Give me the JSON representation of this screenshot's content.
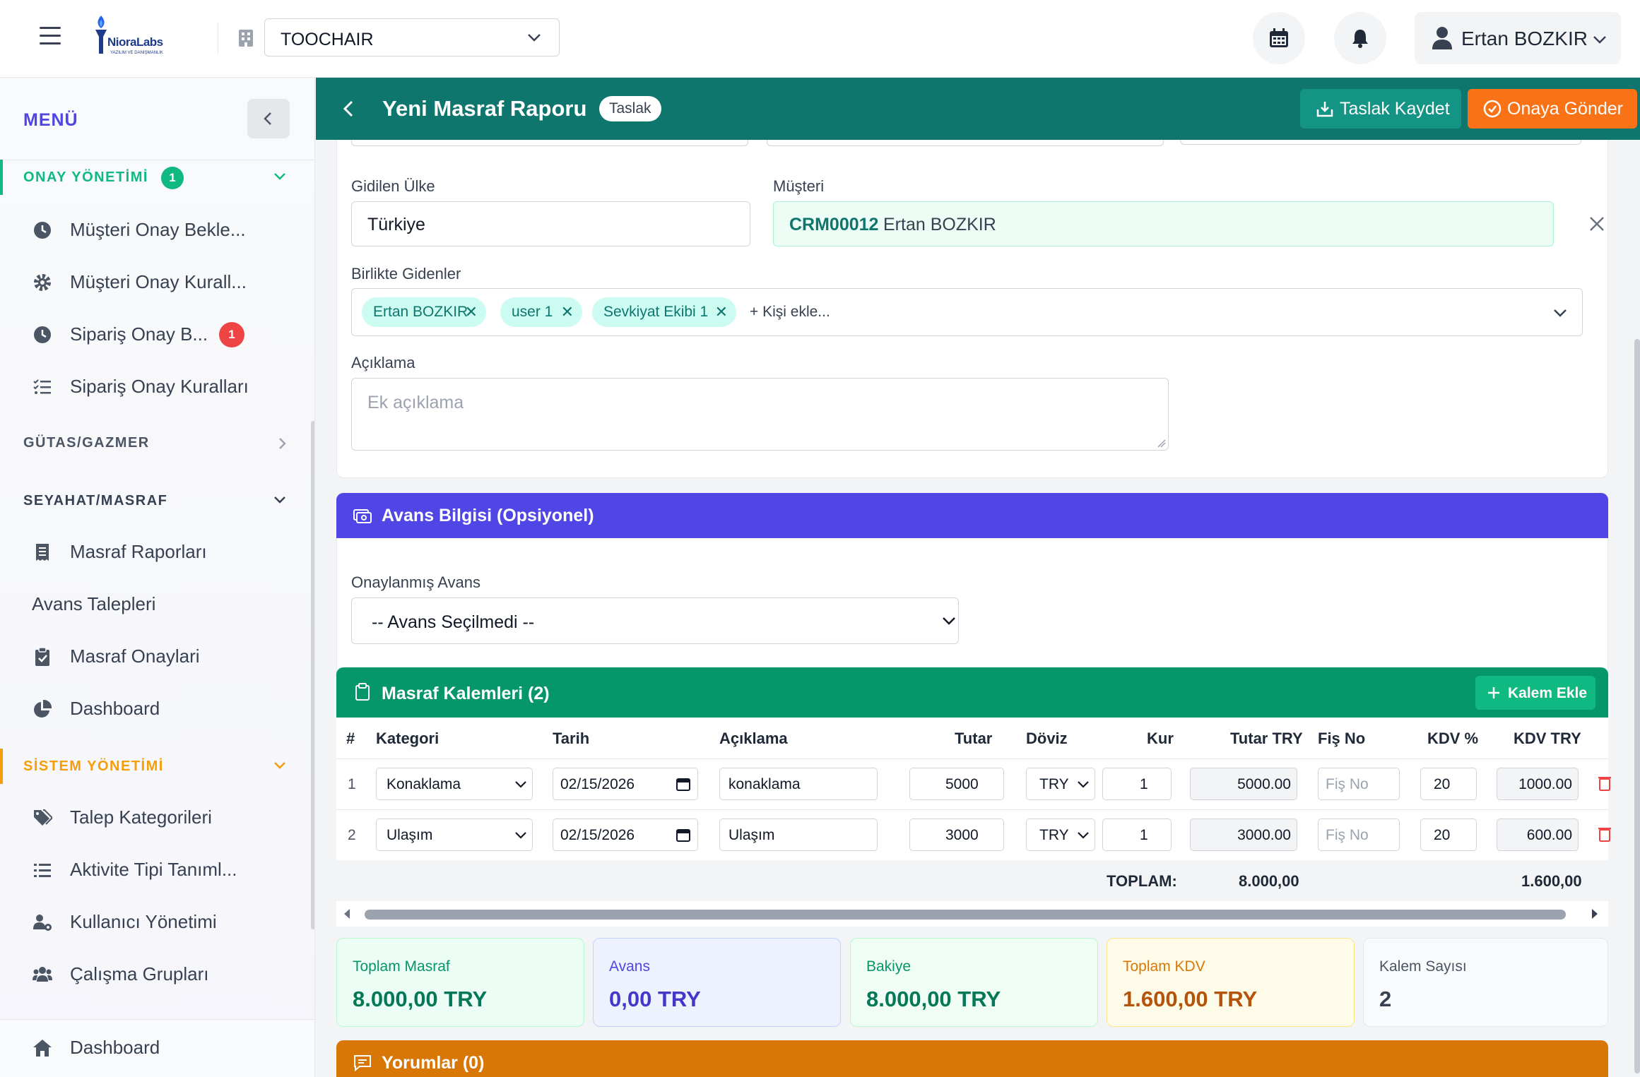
{
  "topbar": {
    "logo_text": "NioraLabs",
    "logo_subtext": "YAZILIM VE DANIŞMANLIK",
    "company": "TOOCHAIR",
    "user_name": "Ertan BOZKIR"
  },
  "sidebar": {
    "title": "MENÜ",
    "sections": {
      "approval": {
        "label": "ONAY YÖNETİMİ",
        "badge": "1",
        "color": "#10b981"
      },
      "gutas": {
        "label": "GÜTAS/GAZMER"
      },
      "travel": {
        "label": "SEYAHAT/MASRAF"
      },
      "system": {
        "label": "SİSTEM YÖNETİMİ",
        "color": "#f59e0b"
      }
    },
    "items": [
      {
        "label": "Müşteri Onay Bekle...",
        "icon": "clock-icon"
      },
      {
        "label": "Müşteri Onay Kurall...",
        "icon": "gear-icon"
      },
      {
        "label": "Sipariş Onay B...",
        "icon": "clock-icon",
        "badge": "1"
      },
      {
        "label": "Sipariş Onay Kuralları",
        "icon": "list-check-icon"
      },
      {
        "label": "Masraf Raporları",
        "icon": "receipt-icon"
      },
      {
        "label": "Avans Talepleri"
      },
      {
        "label": "Masraf Onaylari",
        "icon": "clipboard-check-icon"
      },
      {
        "label": "Dashboard",
        "icon": "pie-chart-icon"
      },
      {
        "label": "Talep Kategorileri",
        "icon": "tags-icon"
      },
      {
        "label": "Aktivite Tipi Tanıml...",
        "icon": "list-icon"
      },
      {
        "label": "Kullanıcı Yönetimi",
        "icon": "users-gear-icon"
      },
      {
        "label": "Çalışma Grupları",
        "icon": "users-icon"
      },
      {
        "label": "Dashboard",
        "icon": "home-icon"
      }
    ]
  },
  "header": {
    "title": "Yeni Masraf Raporu",
    "status": "Taslak",
    "save_label": "Taslak Kaydet",
    "send_label": "Onaya Gönder"
  },
  "form": {
    "country_label": "Gidilen Ülke",
    "country_value": "Türkiye",
    "customer_label": "Müşteri",
    "customer_code": "CRM00012",
    "customer_name": "Ertan BOZKIR",
    "companions_label": "Birlikte Gidenler",
    "companions": [
      "Ertan BOZKIR",
      "user 1",
      "Sevkiyat Ekibi 1"
    ],
    "add_person": "+ Kişi ekle...",
    "description_label": "Açıklama",
    "description_placeholder": "Ek açıklama"
  },
  "advance": {
    "title": "Avans Bilgisi (Opsiyonel)",
    "label": "Onaylanmış Avans",
    "value": "-- Avans Seçilmedi --"
  },
  "items": {
    "title": "Masraf Kalemleri (2)",
    "add_label": "Kalem Ekle",
    "columns": [
      "#",
      "Kategori",
      "Tarih",
      "Açıklama",
      "Tutar",
      "Döviz",
      "Kur",
      "Tutar TRY",
      "Fiş No",
      "KDV %",
      "KDV TRY"
    ],
    "rows": [
      {
        "idx": "1",
        "category": "Konaklama",
        "date": "02/15/2026",
        "desc": "konaklama",
        "amount": "5000",
        "currency": "TRY",
        "rate": "1",
        "amount_try": "5000.00",
        "receipt_ph": "Fiş No",
        "vat_pct": "20",
        "vat_try": "1000.00"
      },
      {
        "idx": "2",
        "category": "Ulaşım",
        "date": "02/15/2026",
        "desc": "Ulaşım",
        "amount": "3000",
        "currency": "TRY",
        "rate": "1",
        "amount_try": "3000.00",
        "receipt_ph": "Fiş No",
        "vat_pct": "20",
        "vat_try": "600.00"
      }
    ],
    "total_label": "TOPLAM:",
    "total_try": "8.000,00",
    "total_vat": "1.600,00"
  },
  "summary": [
    {
      "label": "Toplam Masraf",
      "value": "8.000,00 TRY"
    },
    {
      "label": "Avans",
      "value": "0,00 TRY"
    },
    {
      "label": "Bakiye",
      "value": "8.000,00 TRY"
    },
    {
      "label": "Toplam KDV",
      "value": "1.600,00 TRY"
    },
    {
      "label": "Kalem Sayısı",
      "value": "2"
    }
  ],
  "comments": {
    "title": "Yorumlar (0)"
  },
  "colors": {
    "header_teal": "#0f766e",
    "advance_purple": "#4f46e5",
    "items_green": "#059669",
    "comments_orange": "#d97706",
    "send_orange": "#f97316"
  }
}
